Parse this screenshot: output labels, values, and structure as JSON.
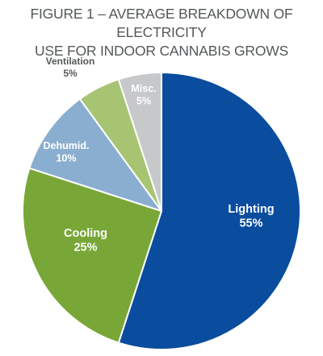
{
  "title_lines": [
    "FIGURE 1 – AVERAGE BREAKDOWN OF ELECTRICITY",
    "USE FOR INDOOR CANNABIS GROWS"
  ],
  "chart_data": {
    "type": "pie",
    "title": "FIGURE 1 – AVERAGE BREAKDOWN OF ELECTRICITY USE FOR INDOOR CANNABIS GROWS",
    "slices": [
      {
        "label": "Lighting",
        "value": 55,
        "value_label": "55%",
        "color": "#0a4c9e"
      },
      {
        "label": "Cooling",
        "value": 25,
        "value_label": "25%",
        "color": "#78a737"
      },
      {
        "label": "Dehumid.",
        "value": 10,
        "value_label": "10%",
        "color": "#8aaecf"
      },
      {
        "label": "Ventilation",
        "value": 5,
        "value_label": "5%",
        "color": "#a7c473"
      },
      {
        "label": "Misc.",
        "value": 5,
        "value_label": "5%",
        "color": "#c7c8ca"
      }
    ],
    "start": "12 o'clock",
    "direction": "clockwise"
  }
}
